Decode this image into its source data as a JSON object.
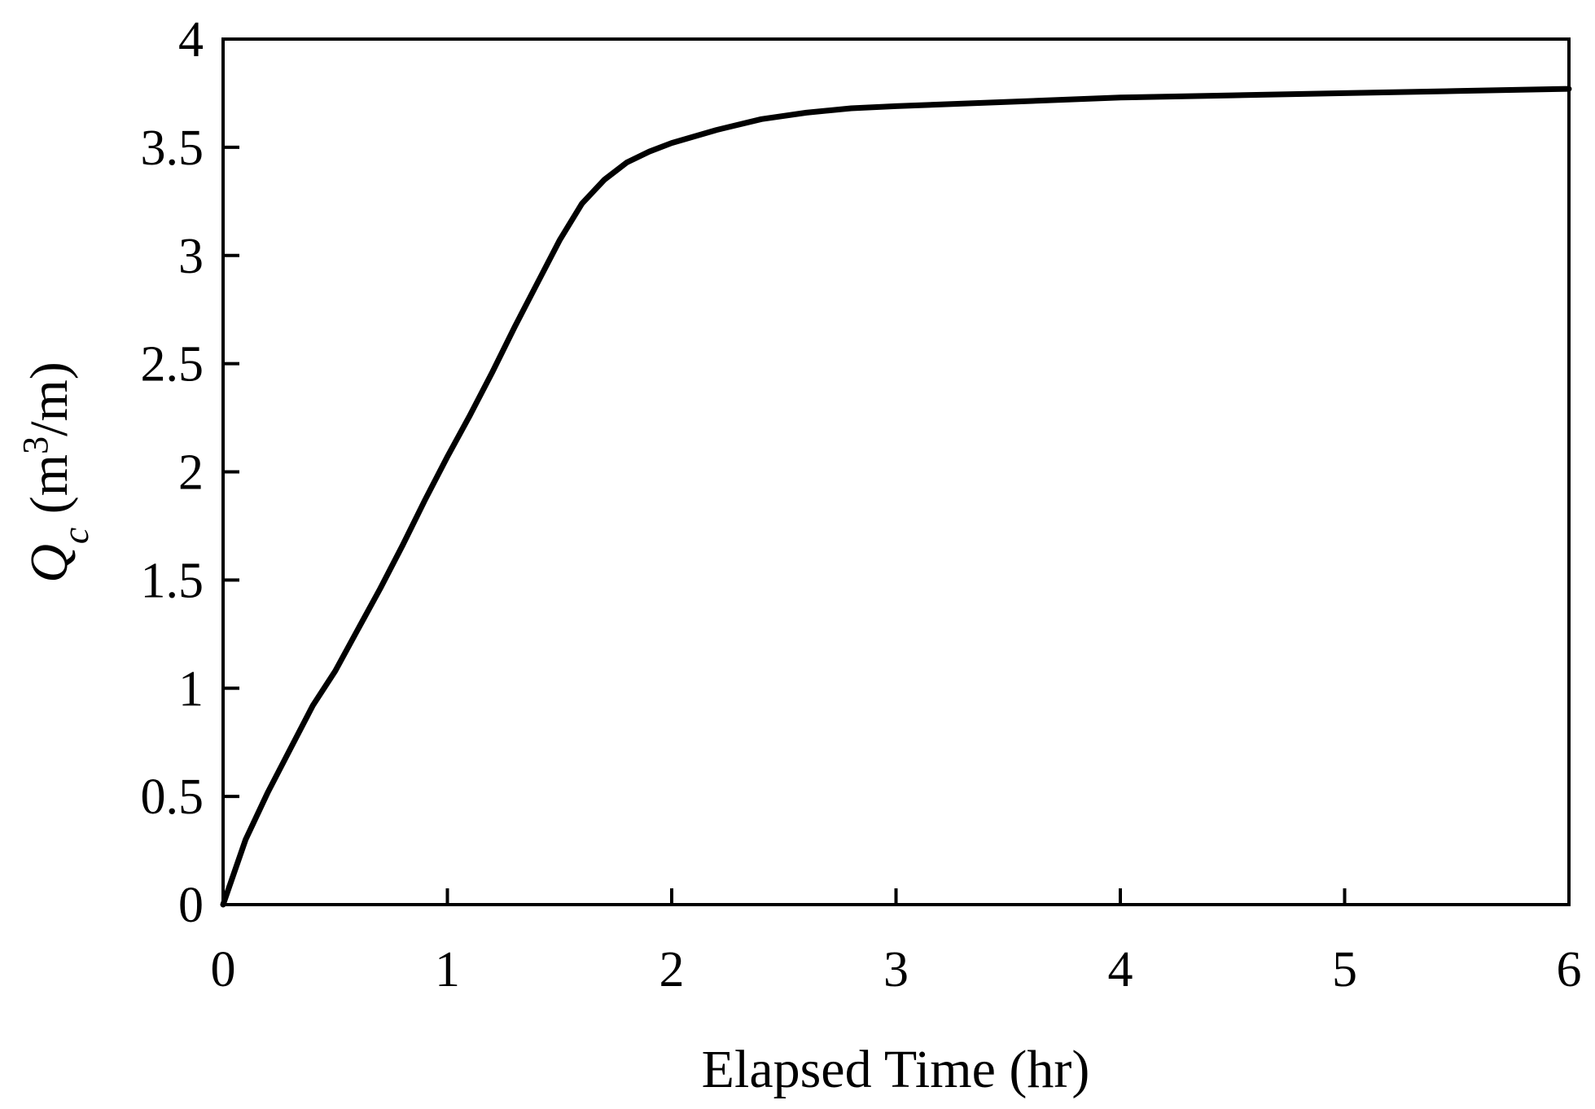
{
  "chart_data": {
    "type": "line",
    "title": "",
    "xlabel": "Elapsed Time (hr)",
    "ylabel": {
      "symbol": "Q",
      "subscript": "c",
      "unit_open": " (m",
      "unit_sup": "3",
      "unit_close": "/m)"
    },
    "xlim": [
      0,
      6
    ],
    "ylim": [
      0,
      4
    ],
    "x_ticks": [
      "0",
      "1",
      "2",
      "3",
      "4",
      "5",
      "6"
    ],
    "y_ticks": [
      "0",
      "0.5",
      "1",
      "1.5",
      "2",
      "2.5",
      "3",
      "3.5",
      "4"
    ],
    "grid": false,
    "legend": "none",
    "line_color": "#000000",
    "series": [
      {
        "x": [
          0,
          0.1,
          0.2,
          0.3,
          0.4,
          0.5,
          0.6,
          0.7,
          0.8,
          0.9,
          1.0,
          1.1,
          1.2,
          1.3,
          1.4,
          1.5,
          1.6,
          1.7,
          1.8,
          1.9,
          2.0,
          2.2,
          2.4,
          2.6,
          2.8,
          3.0,
          3.5,
          4.0,
          4.5,
          5.0,
          5.5,
          6.0
        ],
        "y": [
          0,
          0.3,
          0.52,
          0.72,
          0.92,
          1.08,
          1.27,
          1.46,
          1.66,
          1.87,
          2.07,
          2.26,
          2.46,
          2.67,
          2.87,
          3.07,
          3.24,
          3.35,
          3.43,
          3.48,
          3.52,
          3.58,
          3.63,
          3.66,
          3.68,
          3.69,
          3.71,
          3.73,
          3.74,
          3.75,
          3.76,
          3.77
        ]
      }
    ]
  }
}
